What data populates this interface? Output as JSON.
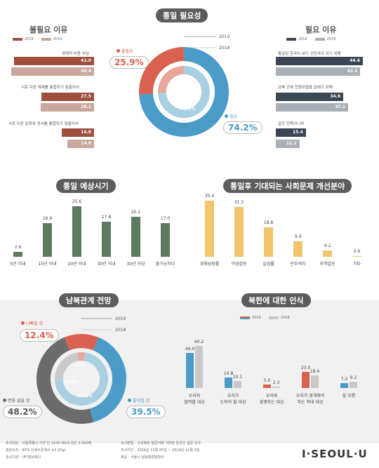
{
  "titles": {
    "necessity": "통일 필요성",
    "unnecessary": "불필요 이유",
    "necessary": "필요 이유",
    "expected_time": "통일 예상시기",
    "social_issues": "통일후 기대되는 사회문제 개선분야",
    "relations": "남북관계 전망",
    "nk_perception": "북한에 대한 인식"
  },
  "legend": {
    "y2019": "2019",
    "y2018": "2018"
  },
  "colors": {
    "rust": "#9e4f3e",
    "rust_light": "#c9a79d",
    "navy": "#3b4653",
    "navy_light": "#a8afb6",
    "blue": "#4a9bc7",
    "blue_light": "#a9d0e2",
    "red": "#d9614f",
    "red_light": "#e8a79b",
    "green": "#5b7a5e",
    "yellow": "#f2c46b",
    "grey": "#6b6b6b",
    "grey_light": "#c9c9c9"
  },
  "necessity_donut": {
    "outer_year": "2019",
    "inner_year": "2018",
    "unnecessary_label": "불필요",
    "necessary_label": "필요",
    "outer": {
      "unnecessary": 25.9,
      "necessary": 74.2
    },
    "inner": {
      "unnecessary": 25.8,
      "necessary": 74.2
    },
    "outer_unnecessary_text": "25.9%",
    "outer_necessary_text": "74.2%",
    "inner_unnecessary_text": "25.8%",
    "inner_necessary_text": "74.2%"
  },
  "unnecessary_reasons": [
    {
      "label": "경제적 비용 부담",
      "v2019": 42.0,
      "v2018": 43.4
    },
    {
      "label": "서로 다른 체제를 통합하기 힘들어서",
      "v2019": 27.5,
      "v2018": 28.1
    },
    {
      "label": "서로 다른 문화와 정서를 통합하기 힘들어서",
      "v2019": 16.8,
      "v2018": 14.0
    }
  ],
  "unnecessary_reason_texts": [
    [
      "42.0",
      "43.4"
    ],
    [
      "27.5",
      "28.1"
    ],
    [
      "16.8",
      "14.0"
    ]
  ],
  "necessary_reasons": [
    {
      "label": "통일된 한국이 보다 선진국이 되기 위해",
      "v2019": 44.6,
      "v2018": 43.3
    },
    {
      "label": "남북 간에 전쟁위협을 없애기 위해",
      "v2019": 34.6,
      "v2018": 37.1
    },
    {
      "label": "같은 민족이니까",
      "v2019": 15.4,
      "v2018": 12.1
    }
  ],
  "necessary_reason_texts": [
    [
      "44.6",
      "43.3"
    ],
    [
      "34.6",
      "37.1"
    ],
    [
      "15.4",
      "12.1"
    ]
  ],
  "expected_time": {
    "categories": [
      "5년 이내",
      "10년 이내",
      "20년 이내",
      "30년 이내",
      "30년 이상",
      "불가능하다"
    ],
    "values": [
      2.6,
      16.9,
      25.6,
      17.8,
      20.2,
      17.0
    ],
    "texts": [
      "2.6",
      "16.9",
      "25.6",
      "17.8",
      "20.2",
      "17.0"
    ]
  },
  "social_issues": {
    "categories": [
      "경제성장률",
      "이념갈등",
      "실업률",
      "빈부격차",
      "지역갈등",
      "기타"
    ],
    "values": [
      35.4,
      31.3,
      18.8,
      9.9,
      4.2,
      0.6
    ],
    "texts": [
      "35.4",
      "31.3",
      "18.8",
      "9.9",
      "4.2",
      "0.6"
    ]
  },
  "relations_donut": {
    "outer_year": "2019",
    "inner_year": "2018",
    "worse_label": "나빠질 것",
    "same_label": "변화 없을 것",
    "better_label": "좋아질 것",
    "outer": {
      "worse": 12.4,
      "same": 48.2,
      "better": 39.5
    },
    "inner": {
      "worse": 4.6,
      "same": 23.6,
      "better": 71.8
    },
    "outer_worse_text": "12.4%",
    "outer_same_text": "48.2%",
    "outer_better_text": "39.5%",
    "inner_worse_text": "4.6%",
    "inner_same_text": "23.6%",
    "inner_better_text": "71.8%"
  },
  "nk_perception": {
    "categories": [
      [
        "우리와",
        "협력할 대상"
      ],
      [
        "우리가",
        "도와야 할 대상"
      ],
      [
        "우리와",
        "경쟁하는 대상"
      ],
      [
        "우리가 경계해야",
        "하는 적대 대상"
      ],
      [
        "잘 모름"
      ]
    ],
    "series": [
      {
        "name": "2019",
        "values": [
          49.9,
          14.8,
          5.0,
          23.0,
          7.4
        ]
      },
      {
        "name": "2018",
        "values": [
          60.2,
          10.1,
          2.3,
          18.4,
          9.2
        ]
      }
    ],
    "texts2019": [
      "49.9",
      "14.8",
      "5.0",
      "23.0",
      "7.4"
    ],
    "texts2018": [
      "60.2",
      "10.1",
      "2.3",
      "18.4",
      "9.2"
    ]
  },
  "chart_data": [
    {
      "type": "pie",
      "title": "통일 필요성",
      "series": [
        {
          "name": "2019",
          "labels": [
            "불필요",
            "필요"
          ],
          "values": [
            25.9,
            74.2
          ]
        },
        {
          "name": "2018",
          "labels": [
            "불필요",
            "필요"
          ],
          "values": [
            25.8,
            74.2
          ]
        }
      ]
    },
    {
      "type": "bar",
      "title": "불필요 이유",
      "categories": [
        "경제적 비용 부담",
        "서로 다른 체제를 통합하기 힘들어서",
        "서로 다른 문화와 정서를 통합하기 힘들어서"
      ],
      "series": [
        {
          "name": "2019",
          "values": [
            42.0,
            27.5,
            16.8
          ]
        },
        {
          "name": "2018",
          "values": [
            43.4,
            28.1,
            14.0
          ]
        }
      ]
    },
    {
      "type": "bar",
      "title": "필요 이유",
      "categories": [
        "통일된 한국이 보다 선진국이 되기 위해",
        "남북 간에 전쟁위협을 없애기 위해",
        "같은 민족이니까"
      ],
      "series": [
        {
          "name": "2019",
          "values": [
            44.6,
            34.6,
            15.4
          ]
        },
        {
          "name": "2018",
          "values": [
            43.3,
            37.1,
            12.1
          ]
        }
      ]
    },
    {
      "type": "bar",
      "title": "통일 예상시기",
      "categories": [
        "5년 이내",
        "10년 이내",
        "20년 이내",
        "30년 이내",
        "30년 이상",
        "불가능하다"
      ],
      "values": [
        2.6,
        16.9,
        25.6,
        17.8,
        20.2,
        17.0
      ]
    },
    {
      "type": "bar",
      "title": "통일후 기대되는 사회문제 개선분야",
      "categories": [
        "경제성장률",
        "이념갈등",
        "실업률",
        "빈부격차",
        "지역갈등",
        "기타"
      ],
      "values": [
        35.4,
        31.3,
        18.8,
        9.9,
        4.2,
        0.6
      ]
    },
    {
      "type": "pie",
      "title": "남북관계 전망",
      "series": [
        {
          "name": "2019",
          "labels": [
            "나빠질 것",
            "변화 없을 것",
            "좋아질 것"
          ],
          "values": [
            12.4,
            48.2,
            39.5
          ]
        },
        {
          "name": "2018",
          "labels": [
            "나빠질 것",
            "변화 없을 것",
            "좋아질 것"
          ],
          "values": [
            4.6,
            23.6,
            71.8
          ]
        }
      ]
    },
    {
      "type": "bar",
      "title": "북한에 대한 인식",
      "categories": [
        "우리와 협력할 대상",
        "우리가 도와야 할 대상",
        "우리와 경쟁하는 대상",
        "우리가 경계해야 하는 적대 대상",
        "잘 모름"
      ],
      "series": [
        {
          "name": "2019",
          "values": [
            49.9,
            14.8,
            5.0,
            23.0,
            7.4
          ]
        },
        {
          "name": "2018",
          "values": [
            60.2,
            10.1,
            2.3,
            18.4,
            9.2
          ]
        }
      ]
    }
  ],
  "footer": {
    "left": [
      "조사대상 : 서울특별시 거주 만 19세~69세 성인 2,000명",
      "표본오차 : 95% 신뢰수준에서 ±2.2%p",
      "조사기관 : (주)엠브레인"
    ],
    "right": [
      "조사방법 : 구조화된 질문지에 기반한 온라인 설문 조사",
      "조사기간 : 2019년 11월 25일 ~ 2019년 12월 3일",
      "제공 : 서울시 남북협력담당관"
    ],
    "brand": "I·SEOUL·U"
  }
}
